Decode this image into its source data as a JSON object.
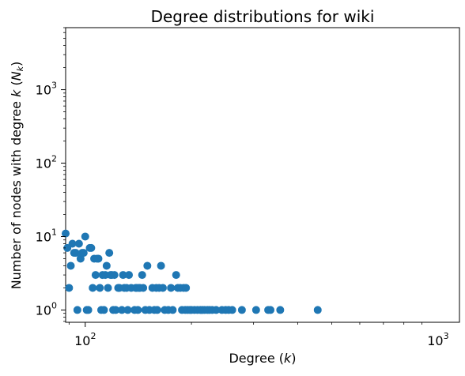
{
  "chart_data": {
    "type": "scatter",
    "title": "Degree distributions for wiki",
    "xlabel": "Degree (k)",
    "ylabel": "Number of nodes with degree k (N_k)",
    "xscale": "log",
    "yscale": "log",
    "xlim": [
      88,
      1150
    ],
    "ylim": [
      0.68,
      7000
    ],
    "grid": false,
    "marker_color": "#1f77b4",
    "x_ticks": [
      {
        "value": 100,
        "base": "10",
        "exp": "2"
      },
      {
        "value": 1000,
        "base": "10",
        "exp": "3"
      }
    ],
    "y_ticks": [
      {
        "value": 1,
        "base": "10",
        "exp": "0"
      },
      {
        "value": 10,
        "base": "10",
        "exp": "1"
      },
      {
        "value": 100,
        "base": "10",
        "exp": "2"
      },
      {
        "value": 1000,
        "base": "10",
        "exp": "3"
      }
    ],
    "points": [
      [
        88,
        11
      ],
      [
        89,
        7
      ],
      [
        90,
        2
      ],
      [
        91,
        4
      ],
      [
        92,
        8
      ],
      [
        93,
        6
      ],
      [
        94,
        6
      ],
      [
        95,
        1
      ],
      [
        96,
        8
      ],
      [
        97,
        5
      ],
      [
        98,
        6
      ],
      [
        99,
        6
      ],
      [
        100,
        10
      ],
      [
        101,
        1
      ],
      [
        102,
        1
      ],
      [
        103,
        7
      ],
      [
        104,
        7
      ],
      [
        105,
        2
      ],
      [
        106,
        5
      ],
      [
        107,
        3
      ],
      [
        108,
        5
      ],
      [
        109,
        5
      ],
      [
        110,
        2
      ],
      [
        111,
        1
      ],
      [
        112,
        3
      ],
      [
        113,
        1
      ],
      [
        114,
        3
      ],
      [
        115,
        4
      ],
      [
        116,
        2
      ],
      [
        117,
        6
      ],
      [
        118,
        3
      ],
      [
        119,
        3
      ],
      [
        120,
        1
      ],
      [
        121,
        3
      ],
      [
        122,
        1
      ],
      [
        124,
        2
      ],
      [
        125,
        2
      ],
      [
        127,
        1
      ],
      [
        128,
        3
      ],
      [
        129,
        2
      ],
      [
        131,
        2
      ],
      [
        132,
        1
      ],
      [
        133,
        3
      ],
      [
        135,
        2
      ],
      [
        138,
        1
      ],
      [
        139,
        2
      ],
      [
        140,
        2
      ],
      [
        141,
        1
      ],
      [
        142,
        2
      ],
      [
        143,
        2
      ],
      [
        145,
        3
      ],
      [
        146,
        2
      ],
      [
        148,
        1
      ],
      [
        150,
        4
      ],
      [
        152,
        1
      ],
      [
        155,
        2
      ],
      [
        157,
        1
      ],
      [
        159,
        2
      ],
      [
        160,
        1
      ],
      [
        162,
        2
      ],
      [
        164,
        4
      ],
      [
        166,
        2
      ],
      [
        168,
        1
      ],
      [
        172,
        1
      ],
      [
        175,
        2
      ],
      [
        177,
        1
      ],
      [
        181,
        3
      ],
      [
        183,
        2
      ],
      [
        186,
        2
      ],
      [
        188,
        1
      ],
      [
        190,
        2
      ],
      [
        192,
        1
      ],
      [
        193,
        2
      ],
      [
        195,
        1
      ],
      [
        198,
        1
      ],
      [
        200,
        1
      ],
      [
        204,
        1
      ],
      [
        208,
        1
      ],
      [
        212,
        1
      ],
      [
        215,
        1
      ],
      [
        218,
        1
      ],
      [
        222,
        1
      ],
      [
        225,
        1
      ],
      [
        229,
        1
      ],
      [
        235,
        1
      ],
      [
        244,
        1
      ],
      [
        250,
        1
      ],
      [
        255,
        1
      ],
      [
        261,
        1
      ],
      [
        278,
        1
      ],
      [
        305,
        1
      ],
      [
        330,
        1
      ],
      [
        335,
        1
      ],
      [
        357,
        1
      ],
      [
        456,
        1
      ]
    ]
  }
}
